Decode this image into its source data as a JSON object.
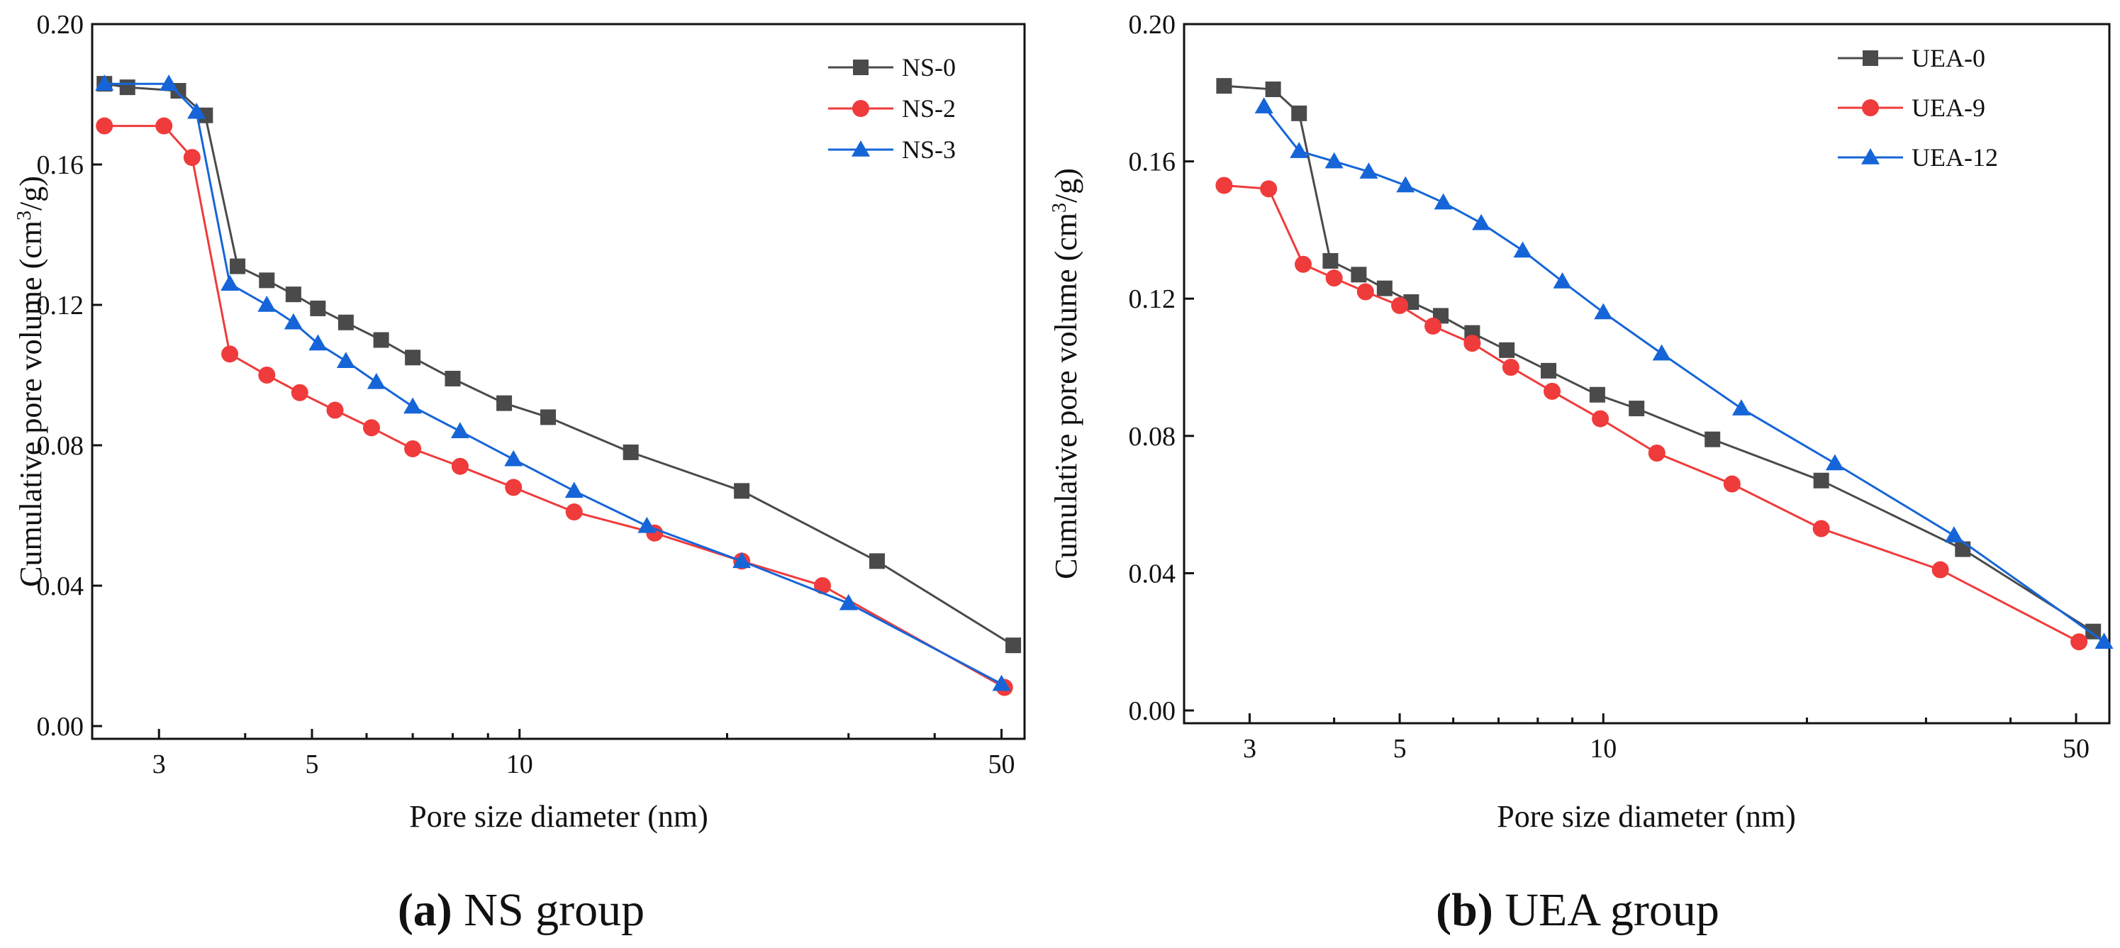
{
  "chart_data": [
    {
      "type": "line",
      "panel": "a",
      "caption_letter": "(a)",
      "caption_text": " NS group",
      "xlabel": "Pore size diameter (nm)",
      "ylabel": "Cumulative pore volume (cm³/g)",
      "x_scale": "log",
      "xlim": [
        2.4,
        54
      ],
      "ylim": [
        0,
        0.2
      ],
      "x_ticks": [
        3,
        5,
        10,
        50
      ],
      "y_ticks": [
        0.0,
        0.04,
        0.08,
        0.12,
        0.16,
        0.2
      ],
      "y_tick_labels": [
        "0.00",
        "0.04",
        "0.08",
        "0.12",
        "0.16",
        "0.20"
      ],
      "legend_position": "top-right",
      "series": [
        {
          "name": "NS-0",
          "color": "#4a4a4a",
          "marker": "square",
          "x": [
            2.5,
            2.7,
            3.2,
            3.5,
            3.9,
            4.3,
            4.7,
            5.1,
            5.6,
            6.3,
            7.0,
            8.0,
            9.5,
            11.0,
            14.5,
            21.0,
            33.0,
            52.0
          ],
          "y": [
            0.183,
            0.182,
            0.181,
            0.174,
            0.131,
            0.127,
            0.123,
            0.119,
            0.115,
            0.11,
            0.105,
            0.099,
            0.092,
            0.088,
            0.078,
            0.067,
            0.047,
            0.023
          ]
        },
        {
          "name": "NS-2",
          "color": "#ef3b3b",
          "marker": "circle",
          "x": [
            2.5,
            3.05,
            3.35,
            3.8,
            4.3,
            4.8,
            5.4,
            6.1,
            7.0,
            8.2,
            9.8,
            12.0,
            15.7,
            21.0,
            27.5,
            50.5
          ],
          "y": [
            0.171,
            0.171,
            0.162,
            0.106,
            0.1,
            0.095,
            0.09,
            0.085,
            0.079,
            0.074,
            0.068,
            0.061,
            0.055,
            0.047,
            0.04,
            0.011
          ]
        },
        {
          "name": "NS-3",
          "color": "#1565d8",
          "marker": "triangle",
          "x": [
            2.5,
            3.1,
            3.4,
            3.8,
            4.3,
            4.7,
            5.1,
            5.6,
            6.2,
            7.0,
            8.2,
            9.8,
            12.0,
            15.3,
            21.0,
            30.0,
            50.0
          ],
          "y": [
            0.183,
            0.183,
            0.175,
            0.126,
            0.12,
            0.115,
            0.109,
            0.104,
            0.098,
            0.091,
            0.084,
            0.076,
            0.067,
            0.057,
            0.047,
            0.035,
            0.012
          ]
        }
      ]
    },
    {
      "type": "line",
      "panel": "b",
      "caption_letter": "(b)",
      "caption_text": " UEA group",
      "xlabel": "Pore size diameter (nm)",
      "ylabel": "Cumulative pore volume (cm³/g)",
      "x_scale": "log",
      "xlim": [
        2.4,
        56
      ],
      "ylim": [
        0,
        0.2
      ],
      "x_ticks": [
        3,
        5,
        10,
        50
      ],
      "y_ticks": [
        0.0,
        0.04,
        0.08,
        0.12,
        0.16,
        0.2
      ],
      "y_tick_labels": [
        "0.00",
        "0.04",
        "0.08",
        "0.12",
        "0.16",
        "0.20"
      ],
      "legend_position": "top-right",
      "series": [
        {
          "name": "UEA-0",
          "color": "#4a4a4a",
          "marker": "square",
          "x": [
            2.75,
            3.25,
            3.55,
            3.95,
            4.35,
            4.75,
            5.2,
            5.75,
            6.4,
            7.2,
            8.3,
            9.8,
            11.2,
            14.5,
            21.0,
            34.0,
            53.0
          ],
          "y": [
            0.182,
            0.181,
            0.174,
            0.131,
            0.127,
            0.123,
            0.119,
            0.115,
            0.11,
            0.105,
            0.099,
            0.092,
            0.088,
            0.079,
            0.067,
            0.047,
            0.023
          ]
        },
        {
          "name": "UEA-9",
          "color": "#ef3b3b",
          "marker": "circle",
          "x": [
            2.75,
            3.2,
            3.6,
            4.0,
            4.45,
            5.0,
            5.6,
            6.4,
            7.3,
            8.4,
            9.9,
            12.0,
            15.5,
            21.0,
            31.5,
            50.5
          ],
          "y": [
            0.153,
            0.152,
            0.13,
            0.126,
            0.122,
            0.118,
            0.112,
            0.107,
            0.1,
            0.093,
            0.085,
            0.075,
            0.066,
            0.053,
            0.041,
            0.02
          ]
        },
        {
          "name": "UEA-12",
          "color": "#1565d8",
          "marker": "triangle",
          "x": [
            3.15,
            3.55,
            4.0,
            4.5,
            5.1,
            5.8,
            6.6,
            7.6,
            8.7,
            10.0,
            12.2,
            16.0,
            22.0,
            33.0,
            55.0
          ],
          "y": [
            0.176,
            0.163,
            0.16,
            0.157,
            0.153,
            0.148,
            0.142,
            0.134,
            0.125,
            0.116,
            0.104,
            0.088,
            0.072,
            0.051,
            0.02
          ]
        }
      ]
    }
  ]
}
